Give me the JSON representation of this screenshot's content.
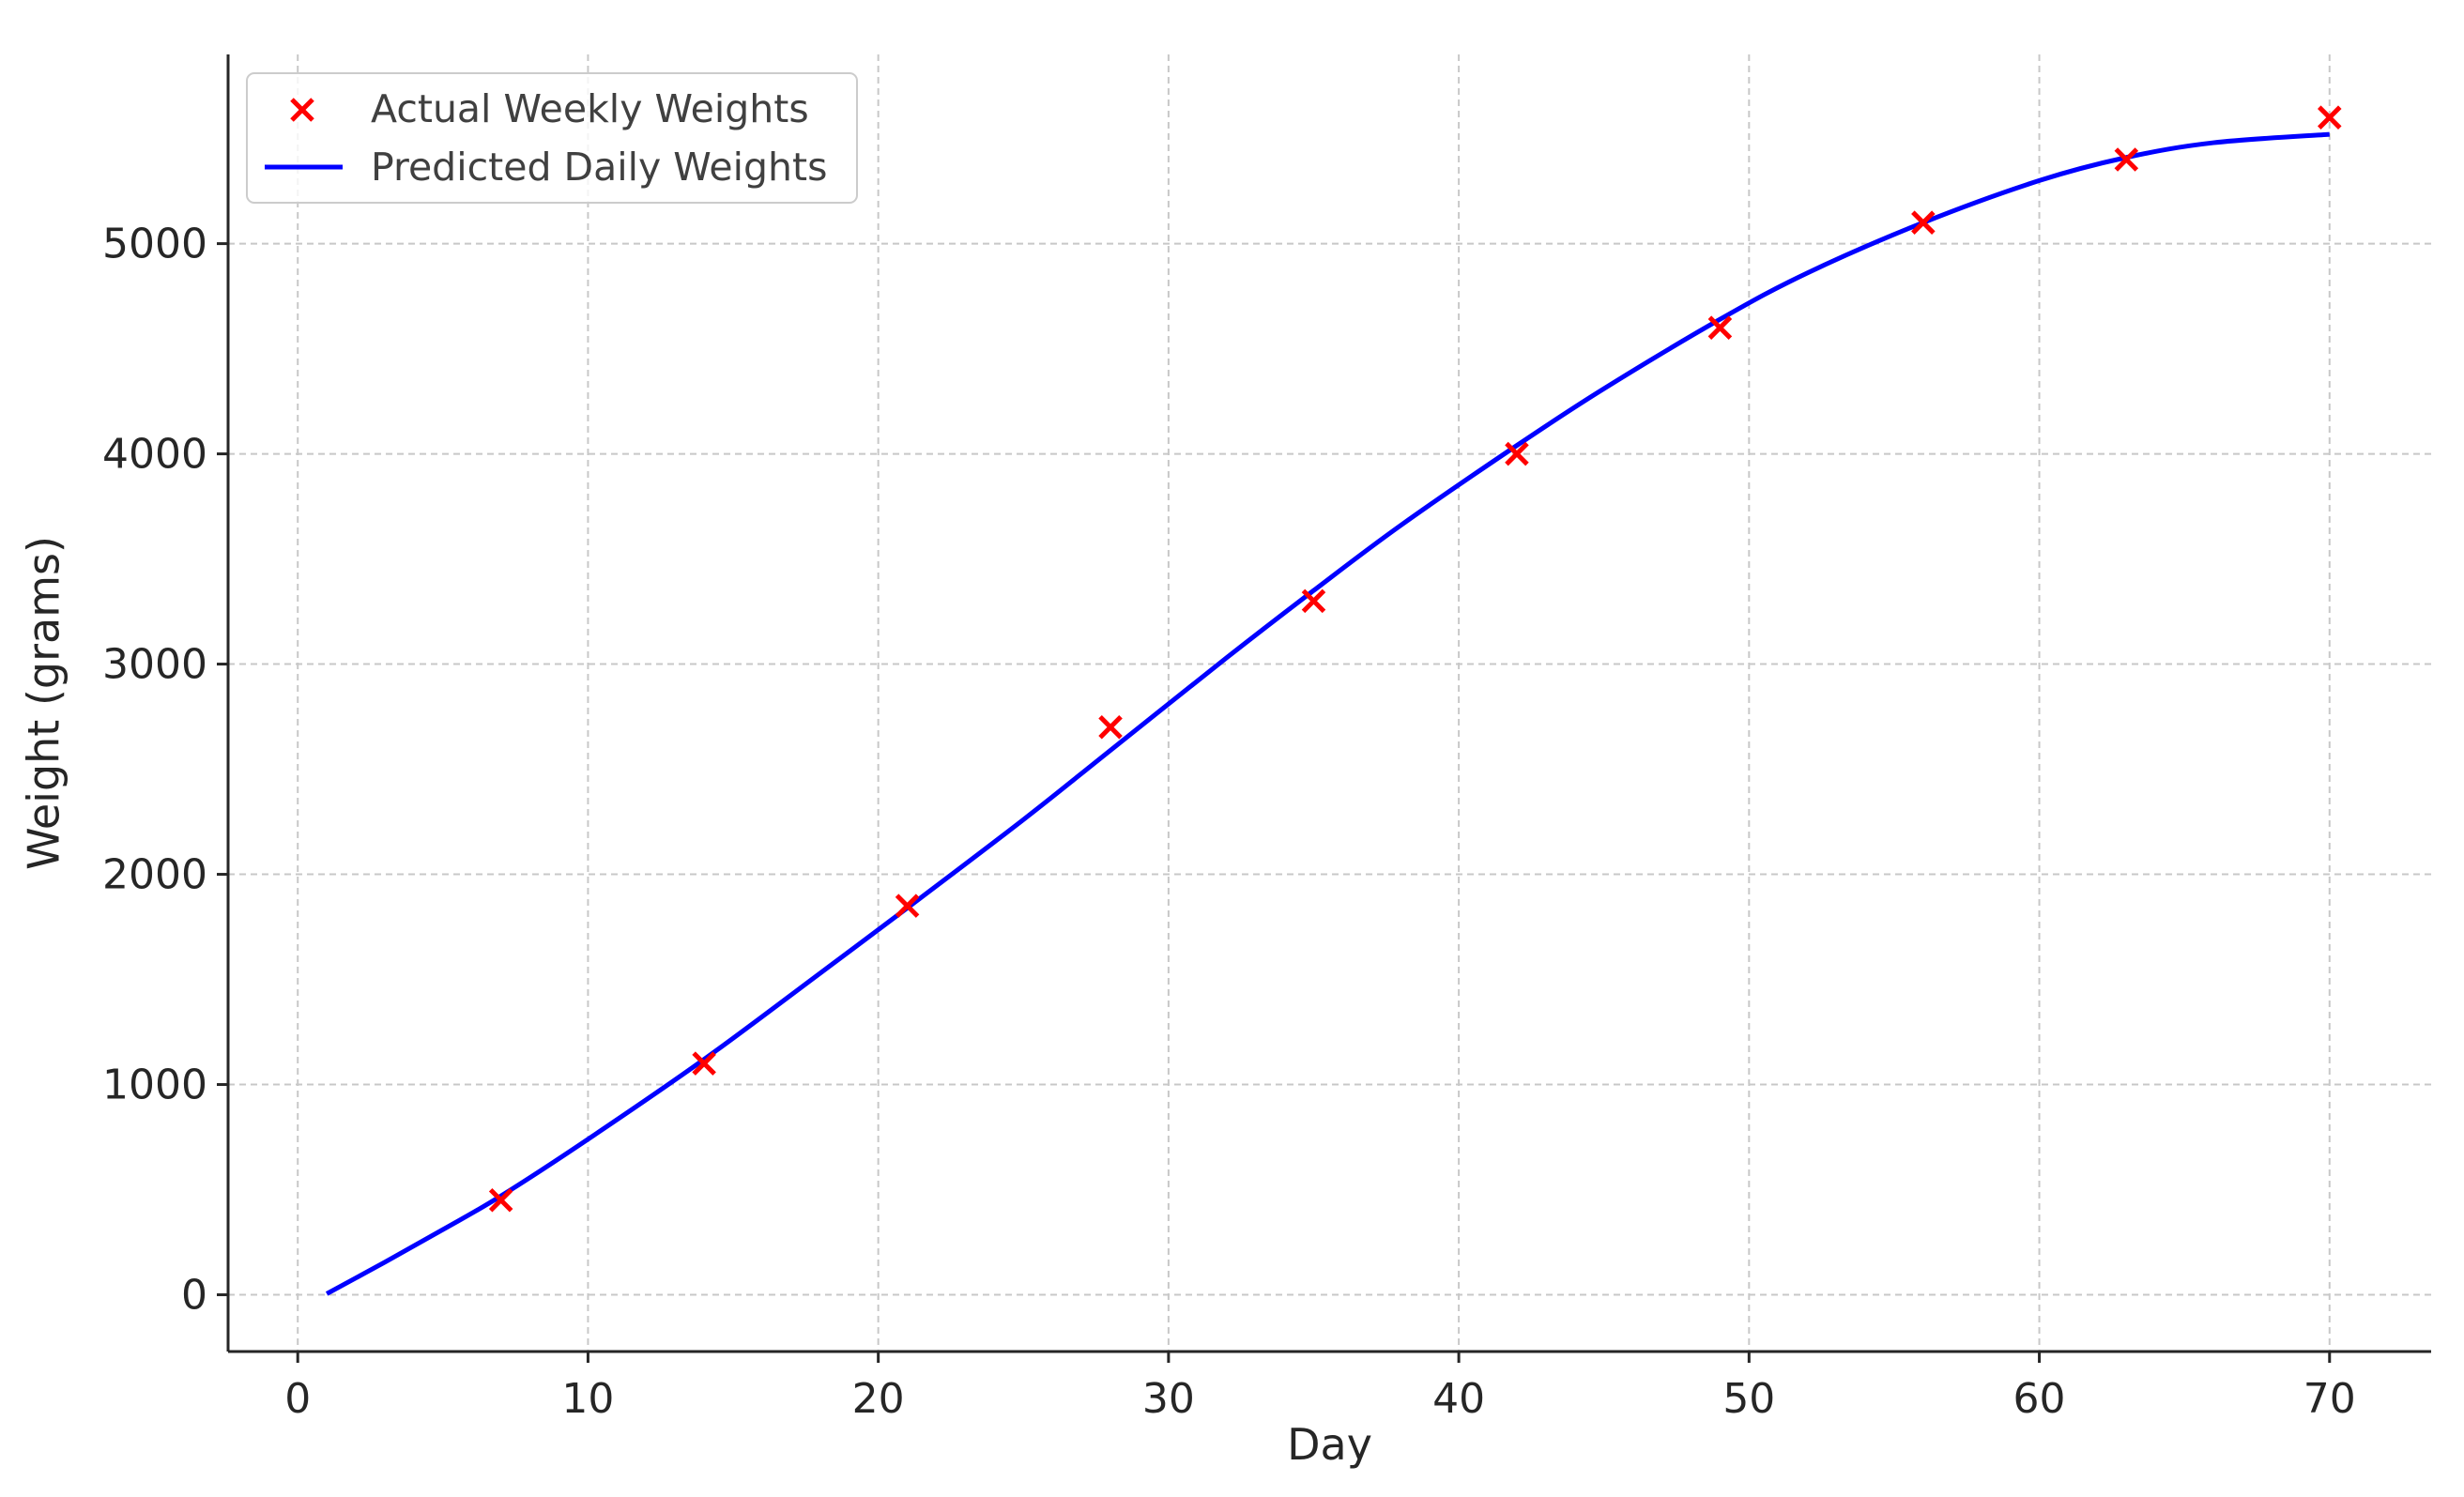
{
  "chart_data": {
    "type": "line",
    "title": "",
    "xlabel": "Day",
    "ylabel": "Weight (grams)",
    "xlim": [
      -2.4,
      73.5
    ],
    "ylim": [
      -270,
      5900
    ],
    "xticks": [
      0,
      10,
      20,
      30,
      40,
      50,
      60,
      70
    ],
    "xtick_labels": [
      "0",
      "10",
      "20",
      "30",
      "40",
      "50",
      "60",
      "70"
    ],
    "yticks": [
      0,
      1000,
      2000,
      3000,
      4000,
      5000
    ],
    "ytick_labels": [
      "0",
      "1000",
      "2000",
      "3000",
      "4000",
      "5000"
    ],
    "grid": true,
    "legend_position": "top-left",
    "series": [
      {
        "name": "Actual Weekly Weights",
        "kind": "scatter",
        "marker": "x",
        "color": "#ff0000",
        "x": [
          7,
          14,
          21,
          28,
          35,
          42,
          49,
          56,
          63,
          70
        ],
        "y": [
          450,
          1100,
          1850,
          2700,
          3300,
          4000,
          4600,
          5100,
          5400,
          5600
        ]
      },
      {
        "name": "Predicted Daily Weights",
        "kind": "line",
        "color": "#0000ff",
        "x": [
          1,
          3,
          5,
          7,
          10,
          14,
          18,
          21,
          25,
          28,
          32,
          35,
          38,
          42,
          45,
          49,
          52,
          56,
          60,
          63,
          66,
          70
        ],
        "y": [
          5,
          155,
          310,
          470,
          740,
          1120,
          1530,
          1840,
          2260,
          2590,
          3030,
          3350,
          3660,
          4040,
          4310,
          4640,
          4860,
          5100,
          5300,
          5410,
          5480,
          5520
        ]
      }
    ]
  }
}
